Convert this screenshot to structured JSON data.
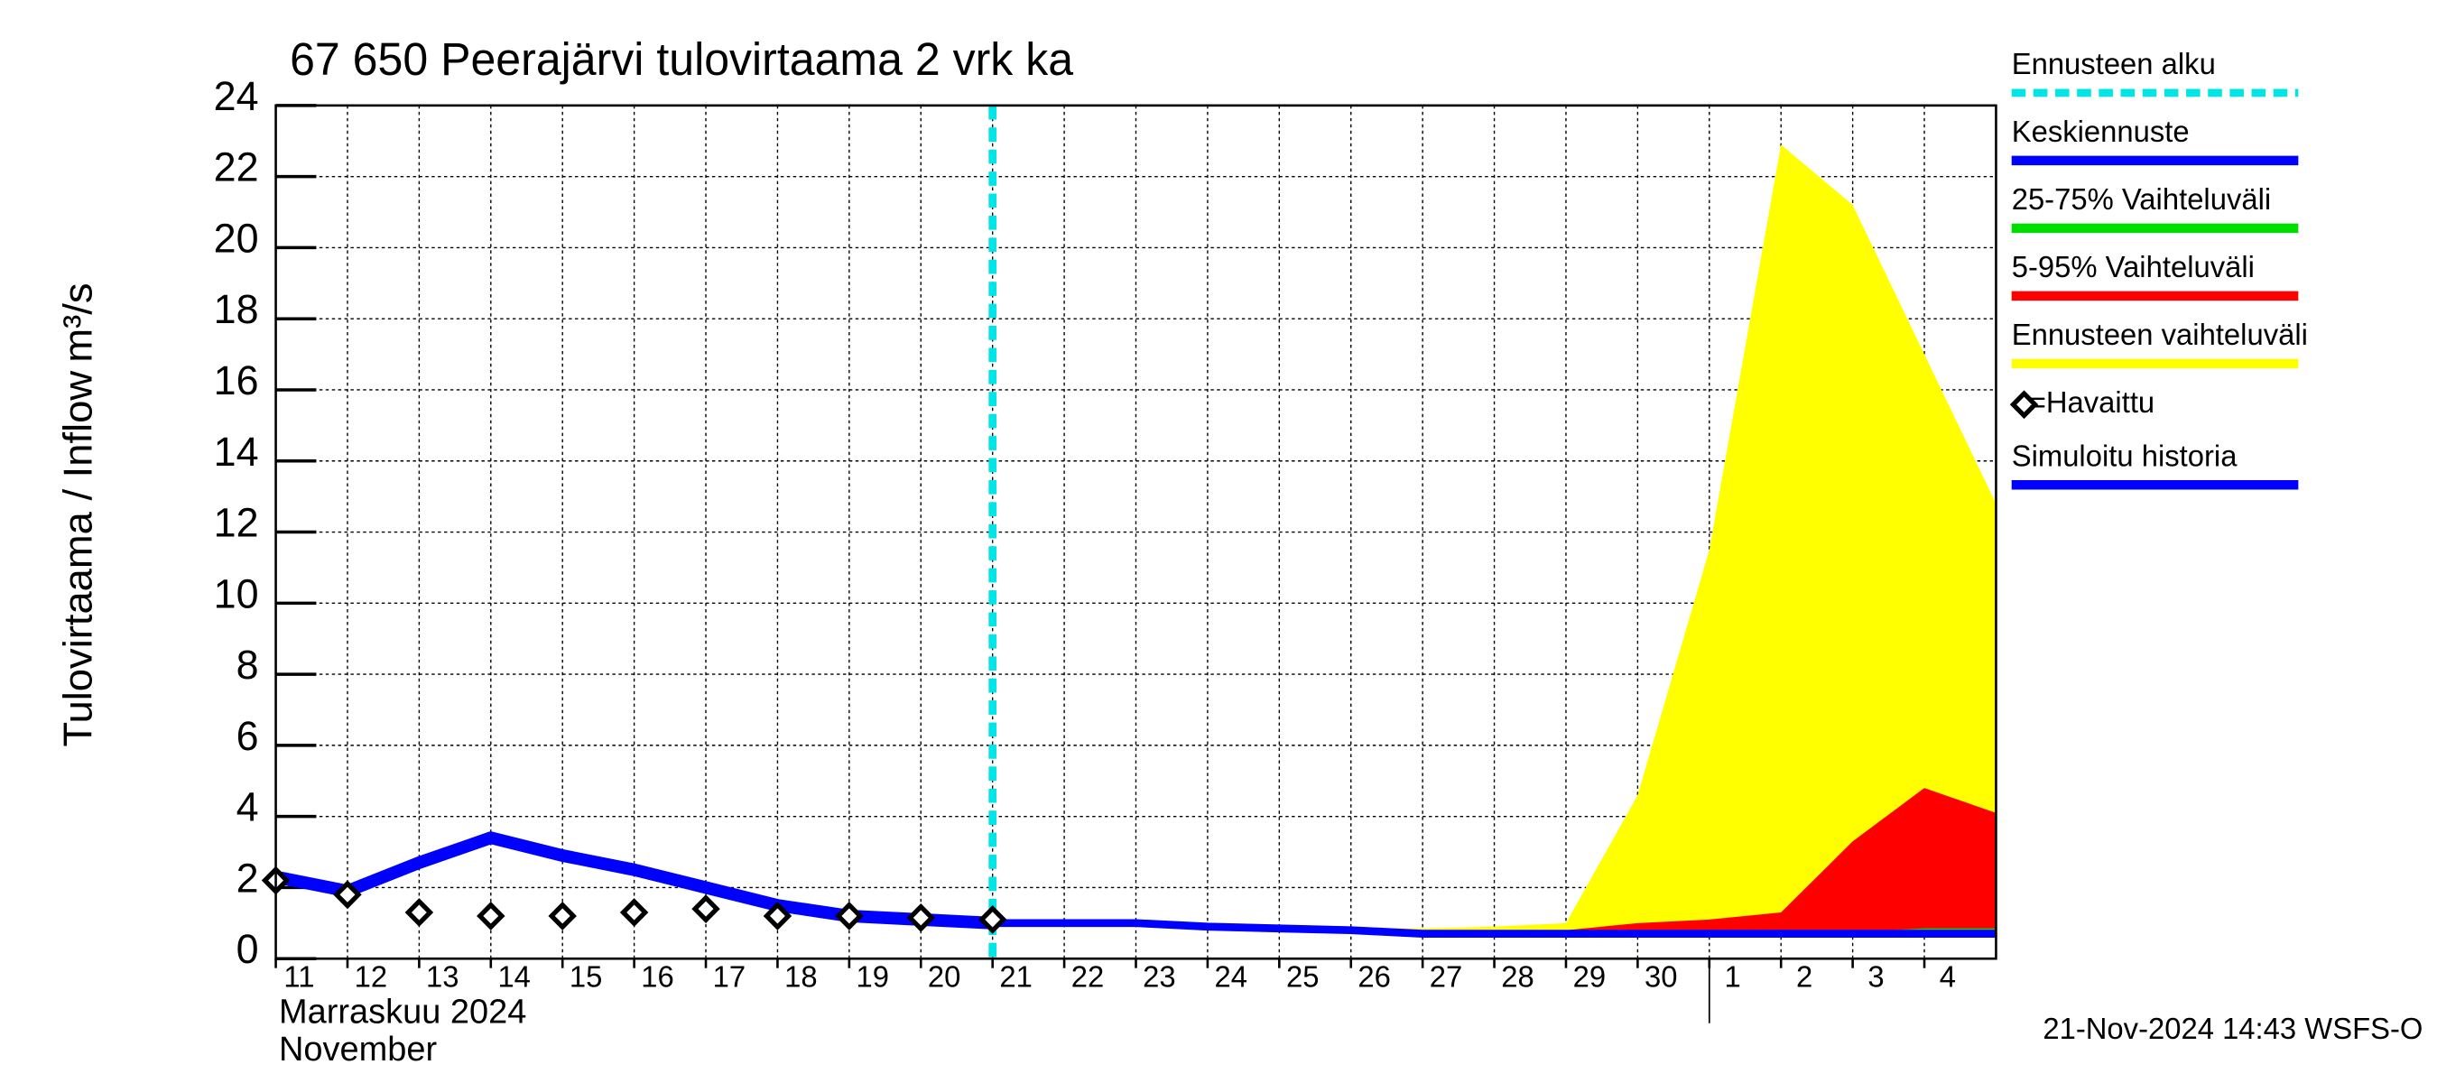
{
  "chart_data": {
    "type": "line",
    "title": "67 650 Peerajärvi tulovirtaama 2 vrk ka",
    "y_label": "Tulovirtaama / Inflow",
    "y_unit": "m³/s",
    "month_label": "Marraskuu 2024",
    "month_label_en": "November",
    "footer": "21-Nov-2024 14:43 WSFS-O",
    "xlim": [
      0,
      24
    ],
    "ylim": [
      0,
      24
    ],
    "yticks": [
      0,
      2,
      4,
      6,
      8,
      10,
      12,
      14,
      16,
      18,
      20,
      22,
      24
    ],
    "xticks": [
      {
        "value": 0,
        "label": "11"
      },
      {
        "value": 1,
        "label": "12"
      },
      {
        "value": 2,
        "label": "13"
      },
      {
        "value": 3,
        "label": "14"
      },
      {
        "value": 4,
        "label": "15"
      },
      {
        "value": 5,
        "label": "16"
      },
      {
        "value": 6,
        "label": "17"
      },
      {
        "value": 7,
        "label": "18"
      },
      {
        "value": 8,
        "label": "19"
      },
      {
        "value": 9,
        "label": "20"
      },
      {
        "value": 10,
        "label": "21"
      },
      {
        "value": 11,
        "label": "22"
      },
      {
        "value": 12,
        "label": "23"
      },
      {
        "value": 13,
        "label": "24"
      },
      {
        "value": 14,
        "label": "25"
      },
      {
        "value": 15,
        "label": "26"
      },
      {
        "value": 16,
        "label": "27"
      },
      {
        "value": 17,
        "label": "28"
      },
      {
        "value": 18,
        "label": "29"
      },
      {
        "value": 19,
        "label": "30"
      },
      {
        "value": 20,
        "label": "1"
      },
      {
        "value": 21,
        "label": "2"
      },
      {
        "value": 22,
        "label": "3"
      },
      {
        "value": 23,
        "label": "4"
      }
    ],
    "month_break": 20,
    "grid": true,
    "forecast_start": {
      "name": "Ennusteen alku",
      "x": 10,
      "color": "#00e5e5"
    },
    "bands": [
      {
        "name": "Ennusteen vaihteluväli",
        "color": "#ffff00",
        "x": [
          10,
          11,
          12,
          13,
          14,
          15,
          16,
          17,
          18,
          19,
          20,
          21,
          22,
          23,
          24
        ],
        "lower": [
          1.0,
          1.0,
          0.95,
          0.85,
          0.8,
          0.75,
          0.65,
          0.6,
          0.6,
          0.6,
          0.6,
          0.6,
          0.6,
          0.6,
          0.6
        ],
        "upper": [
          1.05,
          1.05,
          1.05,
          1.0,
          0.9,
          0.85,
          0.85,
          0.9,
          1.0,
          4.6,
          11.5,
          22.9,
          21.2,
          17.0,
          12.8
        ]
      },
      {
        "name": "5-95% Vaihteluväli",
        "color": "#ff0000",
        "x": [
          10,
          11,
          12,
          13,
          14,
          15,
          16,
          17,
          18,
          19,
          20,
          21,
          22,
          23,
          24
        ],
        "lower": [
          1.0,
          1.0,
          0.95,
          0.85,
          0.8,
          0.75,
          0.65,
          0.6,
          0.6,
          0.6,
          0.6,
          0.6,
          0.6,
          0.6,
          0.6
        ],
        "upper": [
          1.0,
          1.0,
          1.0,
          0.9,
          0.85,
          0.8,
          0.75,
          0.75,
          0.8,
          1.0,
          1.1,
          1.3,
          3.3,
          4.8,
          4.1
        ]
      },
      {
        "name": "25-75% Vaihteluväli",
        "color": "#00dd00",
        "x": [
          10,
          11,
          12,
          13,
          14,
          15,
          16,
          17,
          18,
          19,
          20,
          21,
          22,
          23,
          24
        ],
        "lower": [
          1.0,
          1.0,
          0.95,
          0.85,
          0.8,
          0.75,
          0.65,
          0.65,
          0.65,
          0.65,
          0.65,
          0.65,
          0.65,
          0.65,
          0.65
        ],
        "upper": [
          1.0,
          1.0,
          1.0,
          0.9,
          0.85,
          0.8,
          0.72,
          0.72,
          0.72,
          0.72,
          0.72,
          0.75,
          0.75,
          0.85,
          0.85
        ]
      }
    ],
    "series": [
      {
        "name": "Keskiennuste",
        "color": "#0000ff",
        "kind": "line",
        "x": [
          10,
          11,
          12,
          13,
          14,
          15,
          16,
          17,
          18,
          19,
          20,
          21,
          22,
          23,
          24
        ],
        "values": [
          1.0,
          1.0,
          1.0,
          0.9,
          0.85,
          0.8,
          0.7,
          0.7,
          0.7,
          0.7,
          0.7,
          0.7,
          0.7,
          0.7,
          0.7
        ]
      },
      {
        "name": "Simuloitu historia",
        "color": "#0000ff",
        "kind": "line",
        "x": [
          0,
          1,
          2,
          3,
          4,
          5,
          6,
          7,
          8,
          9,
          10
        ],
        "values": [
          2.3,
          1.9,
          2.7,
          3.4,
          2.9,
          2.5,
          2.0,
          1.5,
          1.2,
          1.1,
          1.0
        ]
      },
      {
        "name": "=Havaittu",
        "color": "#000000",
        "kind": "marker",
        "x": [
          0,
          1,
          2,
          3,
          4,
          5,
          6,
          7,
          8,
          9,
          10
        ],
        "values": [
          2.2,
          1.8,
          1.3,
          1.2,
          1.2,
          1.3,
          1.4,
          1.2,
          1.2,
          1.15,
          1.1
        ]
      }
    ]
  }
}
